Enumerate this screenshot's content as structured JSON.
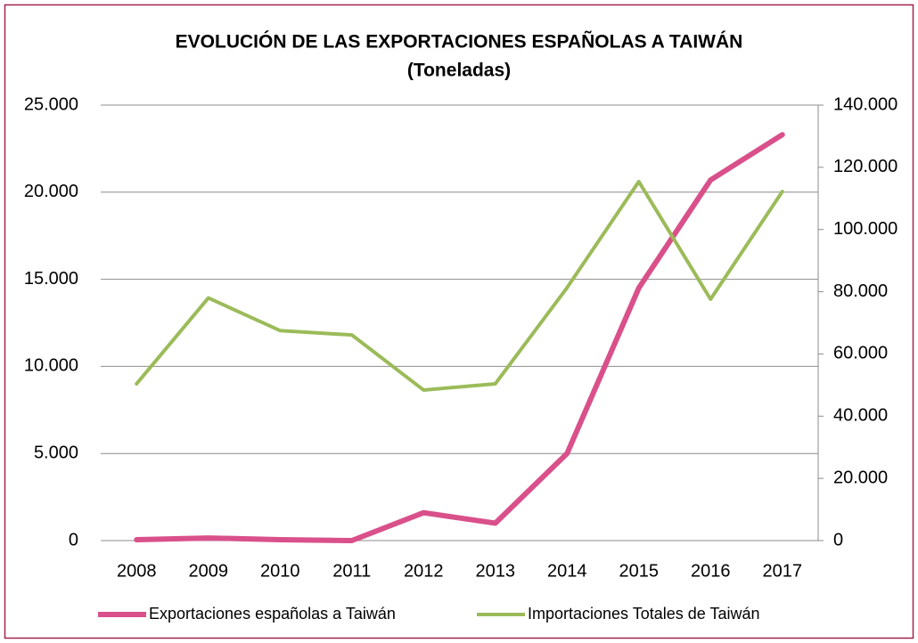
{
  "chart_data": {
    "type": "line",
    "title": "EVOLUCIÓN DE LAS EXPORTACIONES ESPAÑOLAS A TAIWÁN",
    "subtitle": "(Toneladas)",
    "categories": [
      "2008",
      "2009",
      "2010",
      "2011",
      "2012",
      "2013",
      "2014",
      "2015",
      "2016",
      "2017"
    ],
    "series": [
      {
        "name": "Exportaciones españolas a Taiwán",
        "color": "#d9508a",
        "values": [
          50,
          150,
          50,
          0,
          1600,
          1000,
          5000,
          14500,
          20700,
          23300
        ]
      },
      {
        "name": "Importaciones Totales de Taiwán",
        "color": "#9bbb59",
        "axis": "y2",
        "values": [
          50400,
          78000,
          67500,
          66100,
          48400,
          50400,
          81300,
          115400,
          77600,
          112200
        ]
      }
    ],
    "ylim": [
      0,
      25000
    ],
    "yticks": [
      0,
      {
        "value": 5000,
        "label": "5.000"
      },
      {
        "value": 10000,
        "label": "10.000"
      },
      {
        "value": 15000,
        "label": "15.000"
      },
      {
        "value": 20000,
        "label": "20.000"
      },
      {
        "value": 25000,
        "label": "25.000"
      }
    ],
    "y2lim": [
      0,
      140000
    ],
    "y2ticks": [
      0,
      {
        "value": 20000,
        "label": "20.000"
      },
      {
        "value": 40000,
        "label": "40.000"
      },
      {
        "value": 60000,
        "label": "60.000"
      },
      {
        "value": 80000,
        "label": "80.000"
      },
      {
        "value": 100000,
        "label": "100.000"
      },
      {
        "value": 120000,
        "label": "120.000"
      },
      {
        "value": 140000,
        "label": "140.000"
      }
    ],
    "grid": true,
    "legend": "bottom"
  }
}
